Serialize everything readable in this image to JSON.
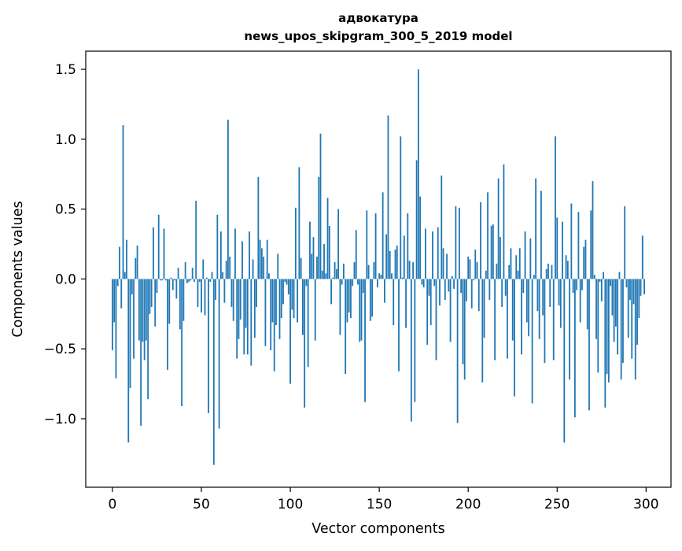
{
  "chart_data": {
    "type": "bar",
    "title": "адвокатура",
    "subtitle": "news_upos_skipgram_300_5_2019 model",
    "xlabel": "Vector components",
    "ylabel": "Components values",
    "xlim": [
      -15,
      314
    ],
    "ylim": [
      -1.49,
      1.63
    ],
    "xticks": [
      0,
      50,
      100,
      150,
      200,
      250,
      300
    ],
    "xtick_labels": [
      "0",
      "50",
      "100",
      "150",
      "200",
      "250",
      "300"
    ],
    "yticks": [
      -1.0,
      -0.5,
      0.0,
      0.5,
      1.0,
      1.5
    ],
    "ytick_labels": [
      "−1.0",
      "−0.5",
      "0.0",
      "0.5",
      "1.0",
      "1.5"
    ],
    "bar_color": "#1f77b4",
    "grid": false,
    "legend": false,
    "x": "integers 0..299 (component index)",
    "values": [
      -0.51,
      -0.31,
      -0.71,
      -0.05,
      0.23,
      -0.21,
      1.1,
      0.05,
      0.28,
      -1.17,
      -0.78,
      -0.11,
      -0.57,
      0.15,
      0.24,
      -0.44,
      -1.05,
      -0.45,
      -0.58,
      -0.44,
      -0.86,
      -0.25,
      -0.2,
      0.37,
      -0.34,
      -0.1,
      0.46,
      -0.01,
      -0.01,
      0.36,
      -0.01,
      -0.65,
      -0.32,
      0.01,
      -0.08,
      -0.01,
      -0.14,
      0.08,
      -0.36,
      -0.91,
      -0.3,
      0.12,
      -0.03,
      -0.02,
      -0.01,
      0.08,
      -0.02,
      0.56,
      -0.2,
      -0.02,
      -0.24,
      0.14,
      -0.26,
      0.01,
      -0.96,
      -0.02,
      0.05,
      -1.33,
      -0.15,
      0.46,
      -1.07,
      0.34,
      0.05,
      -0.17,
      0.13,
      1.14,
      0.16,
      -0.2,
      -0.3,
      0.36,
      -0.57,
      -0.43,
      -0.29,
      0.27,
      -0.54,
      -0.35,
      -0.54,
      0.34,
      -0.62,
      0.14,
      -0.42,
      -0.2,
      0.73,
      0.28,
      0.22,
      0.16,
      -0.48,
      0.28,
      0.04,
      -0.51,
      -0.31,
      -0.66,
      -0.33,
      0.18,
      -0.43,
      -0.28,
      -0.18,
      -0.02,
      -0.04,
      -0.11,
      -0.75,
      -0.22,
      -0.28,
      0.51,
      -0.31,
      0.8,
      0.15,
      -0.4,
      -0.92,
      -0.05,
      -0.63,
      0.41,
      0.18,
      0.3,
      -0.44,
      0.16,
      0.73,
      1.04,
      0.06,
      0.25,
      0.04,
      0.58,
      0.38,
      -0.18,
      0.01,
      0.12,
      0.07,
      0.5,
      -0.4,
      -0.04,
      0.11,
      -0.68,
      -0.31,
      -0.24,
      -0.28,
      -0.05,
      0.12,
      0.35,
      -0.04,
      -0.45,
      -0.44,
      -0.1,
      -0.88,
      0.49,
      0.1,
      -0.3,
      -0.27,
      0.12,
      0.47,
      -0.06,
      0.04,
      0.03,
      0.62,
      -0.17,
      0.32,
      1.17,
      0.2,
      0.04,
      -0.33,
      0.21,
      0.24,
      -0.66,
      1.02,
      0.01,
      0.31,
      -0.35,
      0.47,
      0.13,
      -1.02,
      0.12,
      -0.88,
      0.85,
      1.5,
      0.59,
      -0.04,
      -0.06,
      0.36,
      -0.47,
      -0.12,
      -0.33,
      0.34,
      -0.05,
      -0.58,
      0.37,
      -0.19,
      0.74,
      0.22,
      -0.15,
      0.18,
      -0.09,
      -0.45,
      0.02,
      -0.07,
      0.52,
      -1.03,
      0.51,
      -0.1,
      -0.61,
      -0.72,
      -0.16,
      0.16,
      0.14,
      -0.21,
      -0.01,
      0.21,
      0.12,
      -0.23,
      0.55,
      -0.74,
      -0.42,
      0.06,
      0.62,
      -0.15,
      0.38,
      0.39,
      -0.58,
      0.11,
      0.72,
      0.3,
      -0.2,
      0.82,
      -0.12,
      -0.57,
      0.1,
      0.22,
      -0.44,
      -0.84,
      0.17,
      0.06,
      0.22,
      -0.54,
      -0.1,
      0.34,
      -0.31,
      -0.41,
      0.29,
      -0.89,
      0.03,
      0.72,
      -0.23,
      -0.43,
      0.63,
      -0.26,
      -0.6,
      0.07,
      0.11,
      -0.2,
      0.1,
      -0.58,
      1.02,
      0.44,
      -0.19,
      -0.35,
      0.41,
      -1.17,
      0.17,
      0.13,
      -0.72,
      0.54,
      -0.1,
      -0.99,
      -0.08,
      0.48,
      -0.31,
      -0.08,
      0.23,
      0.28,
      -0.36,
      -0.94,
      0.49,
      0.7,
      0.03,
      -0.43,
      -0.67,
      -0.02,
      -0.16,
      0.05,
      -0.92,
      -0.68,
      -0.74,
      -0.05,
      -0.26,
      -0.45,
      -0.34,
      -0.54,
      0.05,
      -0.72,
      -0.6,
      0.52,
      -0.06,
      -0.42,
      -0.15,
      -0.57,
      -0.18,
      -0.72,
      -0.47,
      -0.28,
      -0.12,
      0.31,
      -0.11
    ]
  }
}
